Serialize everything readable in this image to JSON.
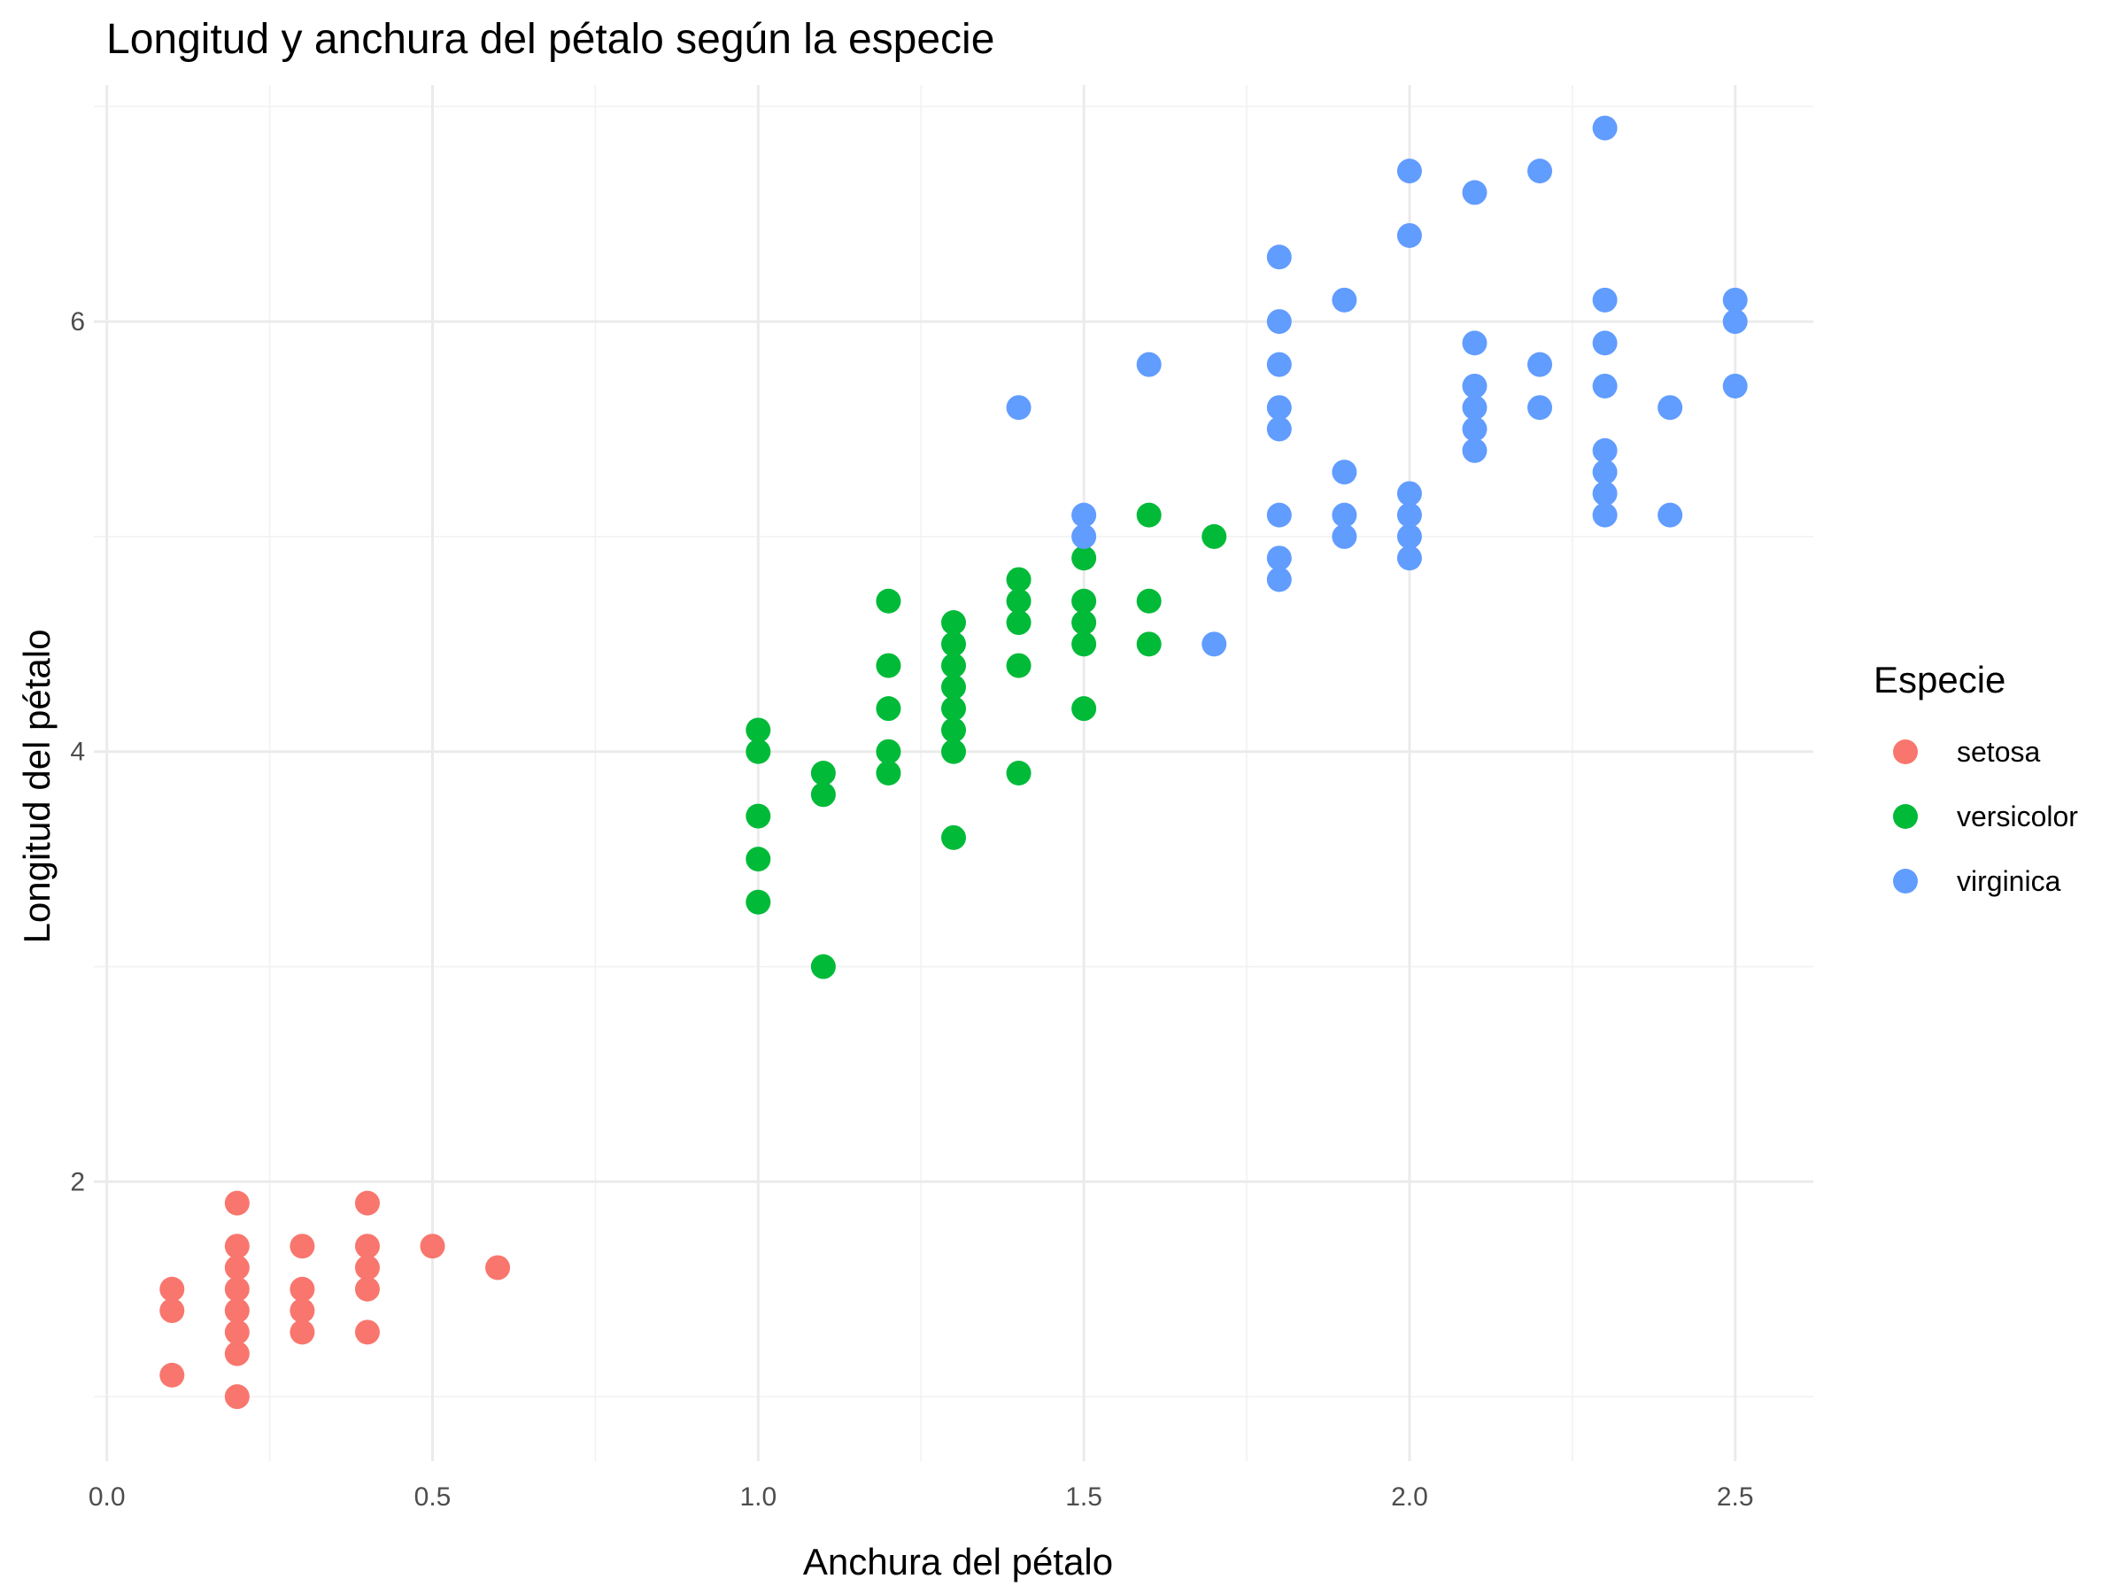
{
  "chart_data": {
    "type": "scatter",
    "title": "Longitud y anchura del pétalo según la especie",
    "xlabel": "Anchura del pétalo",
    "ylabel": "Longitud del pétalo",
    "xlim": [
      -0.02,
      2.62
    ],
    "ylim": [
      0.7,
      7.1
    ],
    "x_ticks": [
      0.0,
      0.5,
      1.0,
      1.5,
      2.0,
      2.5
    ],
    "x_tick_labels": [
      "0.0",
      "0.5",
      "1.0",
      "1.5",
      "2.0",
      "2.5"
    ],
    "y_ticks": [
      2,
      4,
      6
    ],
    "y_tick_labels": [
      "2",
      "4",
      "6"
    ],
    "grid": true,
    "legend": {
      "title": "Especie",
      "placement": "right"
    },
    "series": [
      {
        "name": "setosa",
        "color": "#F8766D",
        "points": [
          [
            0.1,
            1.1
          ],
          [
            0.1,
            1.4
          ],
          [
            0.1,
            1.5
          ],
          [
            0.2,
            1.0
          ],
          [
            0.2,
            1.2
          ],
          [
            0.2,
            1.3
          ],
          [
            0.2,
            1.4
          ],
          [
            0.2,
            1.5
          ],
          [
            0.2,
            1.6
          ],
          [
            0.2,
            1.7
          ],
          [
            0.2,
            1.9
          ],
          [
            0.3,
            1.3
          ],
          [
            0.3,
            1.4
          ],
          [
            0.3,
            1.5
          ],
          [
            0.3,
            1.7
          ],
          [
            0.4,
            1.3
          ],
          [
            0.4,
            1.5
          ],
          [
            0.4,
            1.6
          ],
          [
            0.4,
            1.7
          ],
          [
            0.4,
            1.9
          ],
          [
            0.5,
            1.7
          ],
          [
            0.6,
            1.6
          ]
        ]
      },
      {
        "name": "versicolor",
        "color": "#00BA38",
        "points": [
          [
            1.0,
            3.3
          ],
          [
            1.0,
            3.5
          ],
          [
            1.0,
            3.7
          ],
          [
            1.0,
            4.0
          ],
          [
            1.0,
            4.1
          ],
          [
            1.1,
            3.0
          ],
          [
            1.1,
            3.8
          ],
          [
            1.1,
            3.9
          ],
          [
            1.2,
            3.9
          ],
          [
            1.2,
            4.0
          ],
          [
            1.2,
            4.2
          ],
          [
            1.2,
            4.4
          ],
          [
            1.2,
            4.7
          ],
          [
            1.3,
            3.6
          ],
          [
            1.3,
            4.0
          ],
          [
            1.3,
            4.1
          ],
          [
            1.3,
            4.2
          ],
          [
            1.3,
            4.3
          ],
          [
            1.3,
            4.4
          ],
          [
            1.3,
            4.5
          ],
          [
            1.3,
            4.6
          ],
          [
            1.4,
            3.9
          ],
          [
            1.4,
            4.4
          ],
          [
            1.4,
            4.6
          ],
          [
            1.4,
            4.7
          ],
          [
            1.4,
            4.8
          ],
          [
            1.5,
            4.2
          ],
          [
            1.5,
            4.5
          ],
          [
            1.5,
            4.6
          ],
          [
            1.5,
            4.7
          ],
          [
            1.5,
            4.9
          ],
          [
            1.6,
            4.5
          ],
          [
            1.6,
            4.7
          ],
          [
            1.6,
            5.1
          ],
          [
            1.7,
            5.0
          ]
        ]
      },
      {
        "name": "virginica",
        "color": "#619CFF",
        "points": [
          [
            1.4,
            5.6
          ],
          [
            1.5,
            5.0
          ],
          [
            1.5,
            5.1
          ],
          [
            1.6,
            5.8
          ],
          [
            1.7,
            4.5
          ],
          [
            1.8,
            4.8
          ],
          [
            1.8,
            4.9
          ],
          [
            1.8,
            5.1
          ],
          [
            1.8,
            5.5
          ],
          [
            1.8,
            5.6
          ],
          [
            1.8,
            5.8
          ],
          [
            1.8,
            6.0
          ],
          [
            1.8,
            6.3
          ],
          [
            1.9,
            5.0
          ],
          [
            1.9,
            5.1
          ],
          [
            1.9,
            5.3
          ],
          [
            1.9,
            6.1
          ],
          [
            2.0,
            4.9
          ],
          [
            2.0,
            5.0
          ],
          [
            2.0,
            5.1
          ],
          [
            2.0,
            5.2
          ],
          [
            2.0,
            6.4
          ],
          [
            2.0,
            6.7
          ],
          [
            2.1,
            5.4
          ],
          [
            2.1,
            5.5
          ],
          [
            2.1,
            5.6
          ],
          [
            2.1,
            5.7
          ],
          [
            2.1,
            5.9
          ],
          [
            2.1,
            6.6
          ],
          [
            2.2,
            5.6
          ],
          [
            2.2,
            5.8
          ],
          [
            2.2,
            6.7
          ],
          [
            2.3,
            5.1
          ],
          [
            2.3,
            5.2
          ],
          [
            2.3,
            5.3
          ],
          [
            2.3,
            5.4
          ],
          [
            2.3,
            5.7
          ],
          [
            2.3,
            5.9
          ],
          [
            2.3,
            6.1
          ],
          [
            2.3,
            6.9
          ],
          [
            2.4,
            5.1
          ],
          [
            2.4,
            5.6
          ],
          [
            2.5,
            5.7
          ],
          [
            2.5,
            6.0
          ],
          [
            2.5,
            6.1
          ]
        ]
      }
    ]
  }
}
